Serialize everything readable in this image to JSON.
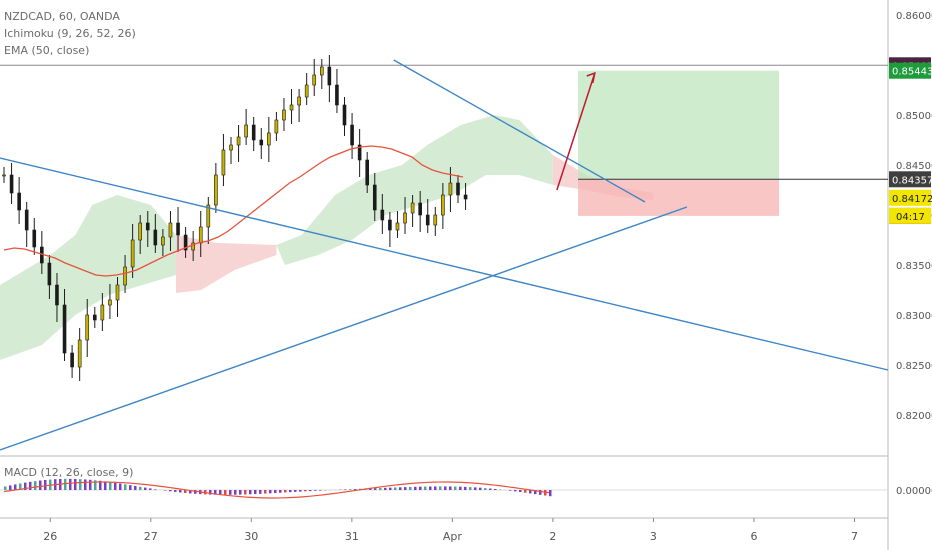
{
  "header": {
    "symbol_line": "NZDCAD, 60, OANDA",
    "indicator_1": "Ichimoku (9, 26, 52, 26)",
    "indicator_2": "EMA (50, close)",
    "macd_label": "MACD (12, 26, close, 9)"
  },
  "colors": {
    "up_candle": "#1b1b1b",
    "down_candle": "#1b1b1b",
    "candle_fill": "#c8b400",
    "trendline": "#3d85c6",
    "ema": "#e5533d",
    "cloud_bull": "#cfe8cc",
    "cloud_bear": "#f6d0d0",
    "target_zone": "#bfe6bf",
    "stop_zone": "#f7b3b3",
    "arrow": "#c0182e",
    "macd_line": "#e5533d",
    "hist_up": "#4aa89a",
    "hist_down": "#7b3fc6",
    "hist_red": "#e04848"
  },
  "chart_data": {
    "type": "candlestick",
    "symbol": "NZDCAD",
    "timeframe": "60",
    "source": "OANDA",
    "y_axis": {
      "range": [
        0.816,
        0.8615
      ],
      "tick_labels": [
        "0.86000",
        "0.85500",
        "0.85000",
        "0.84500",
        "0.84000",
        "0.83500",
        "0.83000",
        "0.82500",
        "0.82000"
      ],
      "tick_values": [
        0.86,
        0.855,
        0.85,
        0.845,
        0.84,
        0.835,
        0.83,
        0.825,
        0.82
      ]
    },
    "x_axis": {
      "tick_labels": [
        "26",
        "27",
        "30",
        "31",
        "Apr",
        "2",
        "3",
        "6",
        "7"
      ],
      "tick_index": [
        6,
        18,
        30,
        42,
        54,
        66,
        78,
        90,
        102
      ],
      "range_index": [
        0,
        106
      ]
    },
    "price_labels": [
      {
        "value": 0.85497,
        "text": "0.85497",
        "color": "#4a2540"
      },
      {
        "value": 0.85443,
        "text": "0.85443",
        "color": "#1e9b3a"
      },
      {
        "value": 0.84357,
        "text": "0.84357",
        "color": "#3f3f3f"
      },
      {
        "value": 0.84172,
        "text": "0.84172",
        "color": "#f2e600"
      },
      {
        "value": 0.83991,
        "text": "0.83991",
        "color": "#e02020"
      }
    ],
    "countdown": "04:17",
    "horizontal_line": 0.85497,
    "close_series": [
      0.844,
      0.8422,
      0.8405,
      0.8385,
      0.8368,
      0.8352,
      0.833,
      0.831,
      0.8262,
      0.8248,
      0.8275,
      0.83,
      0.8295,
      0.831,
      0.8315,
      0.833,
      0.8348,
      0.8375,
      0.8392,
      0.8385,
      0.837,
      0.8378,
      0.8392,
      0.838,
      0.8365,
      0.8372,
      0.8388,
      0.841,
      0.844,
      0.8465,
      0.847,
      0.8478,
      0.849,
      0.8475,
      0.847,
      0.8482,
      0.8495,
      0.8505,
      0.851,
      0.8518,
      0.853,
      0.854,
      0.8548,
      0.853,
      0.851,
      0.849,
      0.847,
      0.8455,
      0.843,
      0.8405,
      0.8395,
      0.8385,
      0.8392,
      0.8402,
      0.8412,
      0.84,
      0.839,
      0.84,
      0.842,
      0.8432,
      0.842,
      0.8416
    ],
    "ema_50": [
      0.8365,
      0.8367,
      0.8366,
      0.8363,
      0.836,
      0.8357,
      0.8352,
      0.8348,
      0.8344,
      0.834,
      0.8339,
      0.834,
      0.8342,
      0.8345,
      0.835,
      0.8355,
      0.836,
      0.8364,
      0.8368,
      0.8372,
      0.8374,
      0.8378,
      0.8384,
      0.8392,
      0.84,
      0.8408,
      0.8416,
      0.8424,
      0.8432,
      0.8438,
      0.8445,
      0.8452,
      0.8458,
      0.8462,
      0.8466,
      0.8468,
      0.8469,
      0.8468,
      0.8466,
      0.8462,
      0.8458,
      0.845,
      0.8445,
      0.8442,
      0.844,
      0.8438
    ],
    "trendlines": [
      {
        "name": "descending-long",
        "from": {
          "x": 0,
          "y": 0.8457
        },
        "to": {
          "x": 106,
          "y": 0.8245
        }
      },
      {
        "name": "ascending-support",
        "from": {
          "x": 0,
          "y": 0.8165
        },
        "to": {
          "x": 82,
          "y": 0.8408
        }
      },
      {
        "name": "descending-short",
        "from": {
          "x": 47,
          "y": 0.8555
        },
        "to": {
          "x": 77,
          "y": 0.8413
        }
      }
    ],
    "position": {
      "x_start": 69,
      "x_end": 93,
      "entry": 0.84357,
      "target": 0.85443,
      "stop": 0.83991
    },
    "macd": {
      "zero_label": "0.00000",
      "zero_value": 0
    }
  }
}
